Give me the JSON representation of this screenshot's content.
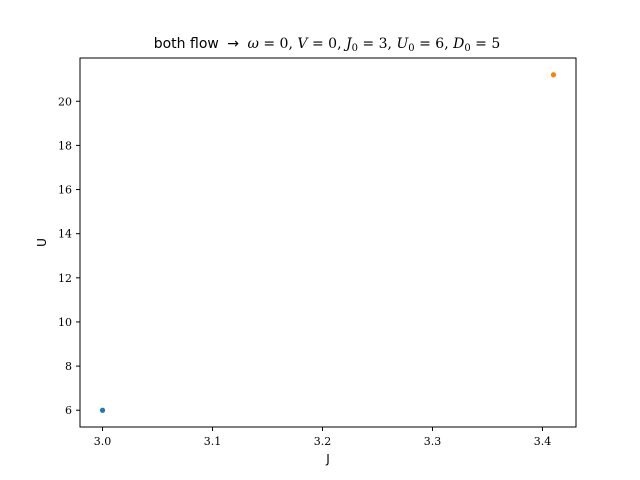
{
  "chart_data": {
    "type": "scatter",
    "title": {
      "prefix": "both flow",
      "arrow": "→",
      "omega": "ω",
      "v": "V",
      "j_sym": "J",
      "u_sym": "U",
      "d_sym": "D",
      "zero": "0",
      "eq": " = ",
      "sep": ", ",
      "omega_val": "0",
      "v_val": "0",
      "j0_val": "3",
      "u0_val": "6",
      "d0_val": "5"
    },
    "xlabel": "J",
    "ylabel": "U",
    "xlim": [
      2.9795,
      3.4305
    ],
    "ylim": [
      5.24,
      21.96
    ],
    "x_ticks": [
      3.0,
      3.1,
      3.2,
      3.3,
      3.4
    ],
    "y_ticks": [
      6,
      8,
      10,
      12,
      14,
      16,
      18,
      20
    ],
    "grid": false,
    "series": [
      {
        "x": [
          3.0
        ],
        "y": [
          6.0
        ],
        "color": "#1f77b4"
      },
      {
        "x": [
          3.41
        ],
        "y": [
          21.2
        ],
        "color": "#ff7f0e"
      }
    ]
  }
}
